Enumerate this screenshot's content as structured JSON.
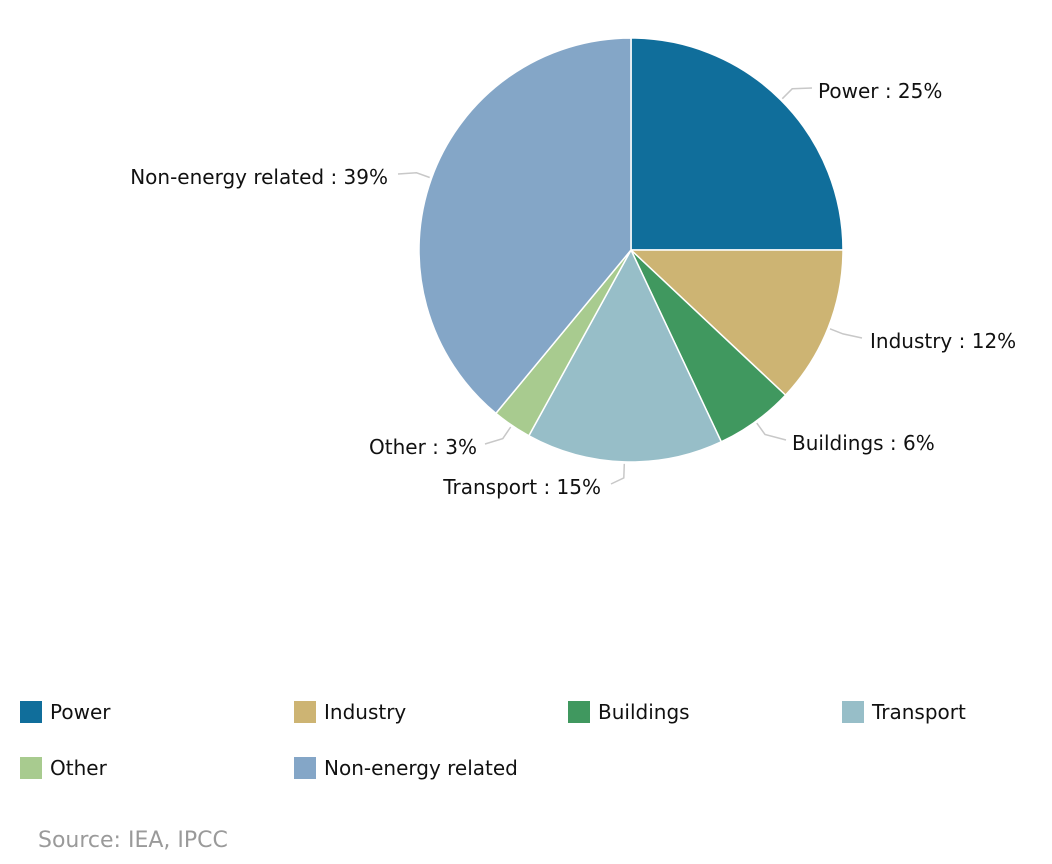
{
  "chart_data": {
    "type": "pie",
    "categories": [
      "Power",
      "Industry",
      "Buildings",
      "Transport",
      "Other",
      "Non-energy related"
    ],
    "values": [
      25,
      12,
      6,
      15,
      3,
      39
    ],
    "unit": "%",
    "colors": [
      "#106e9b",
      "#cdb473",
      "#40985f",
      "#97bec8",
      "#a8cb8f",
      "#84a6c7"
    ],
    "data_labels": [
      "Power : 25%",
      "Industry : 12%",
      "Buildings : 6%",
      "Transport : 15%",
      "Other : 3%",
      "Non-energy related : 39%"
    ],
    "legend_placement": "bottom"
  },
  "source": "Source: IEA, IPCC"
}
